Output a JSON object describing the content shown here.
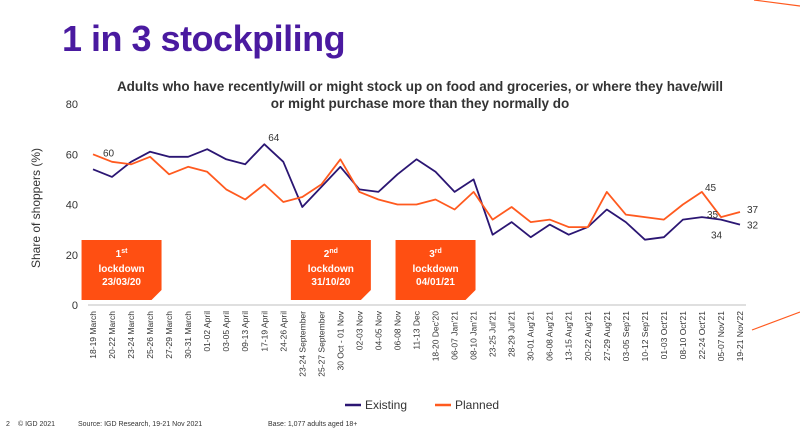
{
  "page": {
    "headline": "1 in 3 stockpiling",
    "footer": {
      "page_number": "2",
      "copyright": "© IGD 2021",
      "source": "Source: IGD Research, 19-21 Nov 2021",
      "base": "Base: 1,077 adults aged 18+"
    }
  },
  "colors": {
    "headline": "#4a1aa0",
    "existing": "#2b1673",
    "planned": "#ff5a1f",
    "lockdown_box": "#ff4f12"
  },
  "chart_data": {
    "type": "line",
    "title": "Adults who have recently/will or might stock up on food and groceries, or where they have/will or might purchase more than they normally do",
    "ylabel": "Share of shoppers (%)",
    "ylim": [
      0,
      80
    ],
    "yticks": [
      0,
      20,
      40,
      60,
      80
    ],
    "grid": false,
    "legend": "bottom-center",
    "categories": [
      "18-19 March",
      "20-22 March",
      "23-24 March",
      "25-26 March",
      "27-29 March",
      "30-31 March",
      "01-02 April",
      "03-05 April",
      "09-13 April",
      "17-19 April",
      "24-26 April",
      "23-24 September",
      "25-27 September",
      "30 Oct - 01 Nov",
      "02-03 Nov",
      "04-05 Nov",
      "06-08 Nov",
      "11-13 Dec",
      "18-20 Dec'20",
      "06-07 Jan'21",
      "08-10 Jan'21",
      "23-25 Jul'21",
      "28-29 Jul'21",
      "30-01 Aug'21",
      "06-08 Aug'21",
      "13-15 Aug'21",
      "20-22 Aug'21",
      "27-29 Aug'21",
      "03-05 Sep'21",
      "10-12 Sep'21",
      "01-03 Oct'21",
      "08-10 Oct'21",
      "22-24 Oct'21",
      "05-07 Nov'21",
      "19-21 Nov'22"
    ],
    "series": [
      {
        "name": "Existing",
        "values": [
          54,
          51,
          57,
          61,
          59,
          59,
          62,
          58,
          56,
          64,
          57,
          39,
          47,
          55,
          46,
          45,
          52,
          58,
          53,
          45,
          50,
          28,
          33,
          27,
          32,
          28,
          31,
          38,
          33,
          26,
          27,
          34,
          35,
          34,
          32
        ]
      },
      {
        "name": "Planned",
        "values": [
          60,
          57,
          56,
          59,
          52,
          55,
          53,
          46,
          42,
          48,
          41,
          43,
          48,
          58,
          45,
          42,
          40,
          40,
          42,
          38,
          45,
          34,
          39,
          33,
          34,
          31,
          31,
          45,
          36,
          35,
          34,
          40,
          45,
          35,
          37
        ]
      }
    ],
    "data_labels": [
      {
        "series": "Planned",
        "index": 0,
        "text": "60"
      },
      {
        "series": "Existing",
        "index": 9,
        "text": "64"
      },
      {
        "series": "Planned",
        "index": 32,
        "text": "45"
      },
      {
        "series": "Planned",
        "index": 33,
        "text": "35"
      },
      {
        "series": "Existing",
        "index": 33,
        "text": "34"
      },
      {
        "series": "Planned",
        "index": 34,
        "text": "37"
      },
      {
        "series": "Existing",
        "index": 34,
        "text": "32"
      }
    ],
    "annotations": [
      {
        "index": 1.5,
        "num": "1",
        "sup": "st",
        "line2": "lockdown",
        "line3": "23/03/20"
      },
      {
        "index": 12.5,
        "num": "2",
        "sup": "nd",
        "line2": "lockdown",
        "line3": "31/10/20"
      },
      {
        "index": 18,
        "num": "3",
        "sup": "rd",
        "line2": "lockdown",
        "line3": "04/01/21"
      }
    ]
  }
}
